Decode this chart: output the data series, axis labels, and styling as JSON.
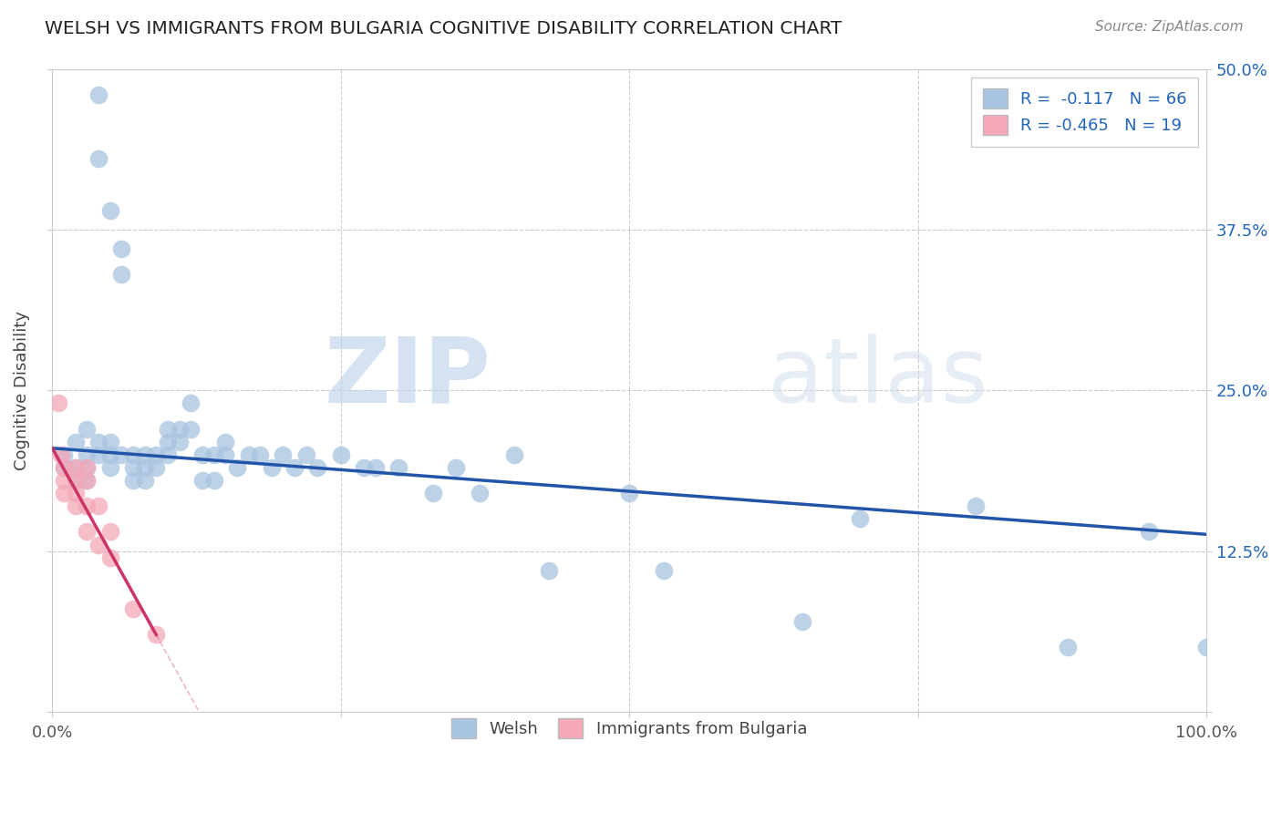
{
  "title": "WELSH VS IMMIGRANTS FROM BULGARIA COGNITIVE DISABILITY CORRELATION CHART",
  "source": "Source: ZipAtlas.com",
  "ylabel": "Cognitive Disability",
  "x_min": 0.0,
  "x_max": 1.0,
  "y_min": 0.0,
  "y_max": 0.5,
  "x_ticks": [
    0.0,
    0.25,
    0.5,
    0.75,
    1.0
  ],
  "x_tick_labels": [
    "0.0%",
    "",
    "",
    "",
    "100.0%"
  ],
  "y_ticks": [
    0.0,
    0.125,
    0.25,
    0.375,
    0.5
  ],
  "y_tick_labels": [
    "",
    "12.5%",
    "25.0%",
    "37.5%",
    "50.0%"
  ],
  "welsh_R": "-0.117",
  "welsh_N": "66",
  "bulgaria_R": "-0.465",
  "bulgaria_N": "19",
  "welsh_color": "#a8c4e0",
  "bulgaria_color": "#f4a8b8",
  "welsh_line_color": "#2255aa",
  "bulgaria_line_color": "#cc3366",
  "watermark_zip": "ZIP",
  "watermark_atlas": "atlas",
  "welsh_x": [
    0.01,
    0.01,
    0.02,
    0.02,
    0.02,
    0.03,
    0.03,
    0.03,
    0.03,
    0.04,
    0.04,
    0.04,
    0.04,
    0.05,
    0.05,
    0.05,
    0.05,
    0.06,
    0.06,
    0.06,
    0.07,
    0.07,
    0.07,
    0.08,
    0.08,
    0.08,
    0.09,
    0.09,
    0.1,
    0.1,
    0.1,
    0.11,
    0.11,
    0.12,
    0.12,
    0.13,
    0.13,
    0.14,
    0.14,
    0.15,
    0.15,
    0.16,
    0.17,
    0.18,
    0.19,
    0.2,
    0.21,
    0.22,
    0.23,
    0.25,
    0.27,
    0.28,
    0.3,
    0.33,
    0.35,
    0.37,
    0.4,
    0.43,
    0.5,
    0.53,
    0.65,
    0.7,
    0.8,
    0.88,
    0.95,
    1.0
  ],
  "welsh_y": [
    0.2,
    0.19,
    0.21,
    0.19,
    0.18,
    0.22,
    0.2,
    0.19,
    0.18,
    0.48,
    0.43,
    0.21,
    0.2,
    0.39,
    0.21,
    0.2,
    0.19,
    0.36,
    0.34,
    0.2,
    0.2,
    0.19,
    0.18,
    0.2,
    0.19,
    0.18,
    0.2,
    0.19,
    0.22,
    0.21,
    0.2,
    0.22,
    0.21,
    0.24,
    0.22,
    0.2,
    0.18,
    0.2,
    0.18,
    0.21,
    0.2,
    0.19,
    0.2,
    0.2,
    0.19,
    0.2,
    0.19,
    0.2,
    0.19,
    0.2,
    0.19,
    0.19,
    0.19,
    0.17,
    0.19,
    0.17,
    0.2,
    0.11,
    0.17,
    0.11,
    0.07,
    0.15,
    0.16,
    0.05,
    0.14,
    0.05
  ],
  "bulgaria_x": [
    0.005,
    0.008,
    0.01,
    0.01,
    0.01,
    0.02,
    0.02,
    0.02,
    0.02,
    0.03,
    0.03,
    0.03,
    0.03,
    0.04,
    0.04,
    0.05,
    0.05,
    0.07,
    0.09
  ],
  "bulgaria_y": [
    0.24,
    0.2,
    0.19,
    0.18,
    0.17,
    0.19,
    0.18,
    0.17,
    0.16,
    0.19,
    0.18,
    0.16,
    0.14,
    0.16,
    0.13,
    0.14,
    0.12,
    0.08,
    0.06
  ],
  "welsh_line_x0": 0.0,
  "welsh_line_y0": 0.205,
  "welsh_line_x1": 1.0,
  "welsh_line_y1": 0.138,
  "bulg_line_x0": 0.0,
  "bulg_line_y0": 0.205,
  "bulg_line_x1": 0.09,
  "bulg_line_y1": 0.06
}
